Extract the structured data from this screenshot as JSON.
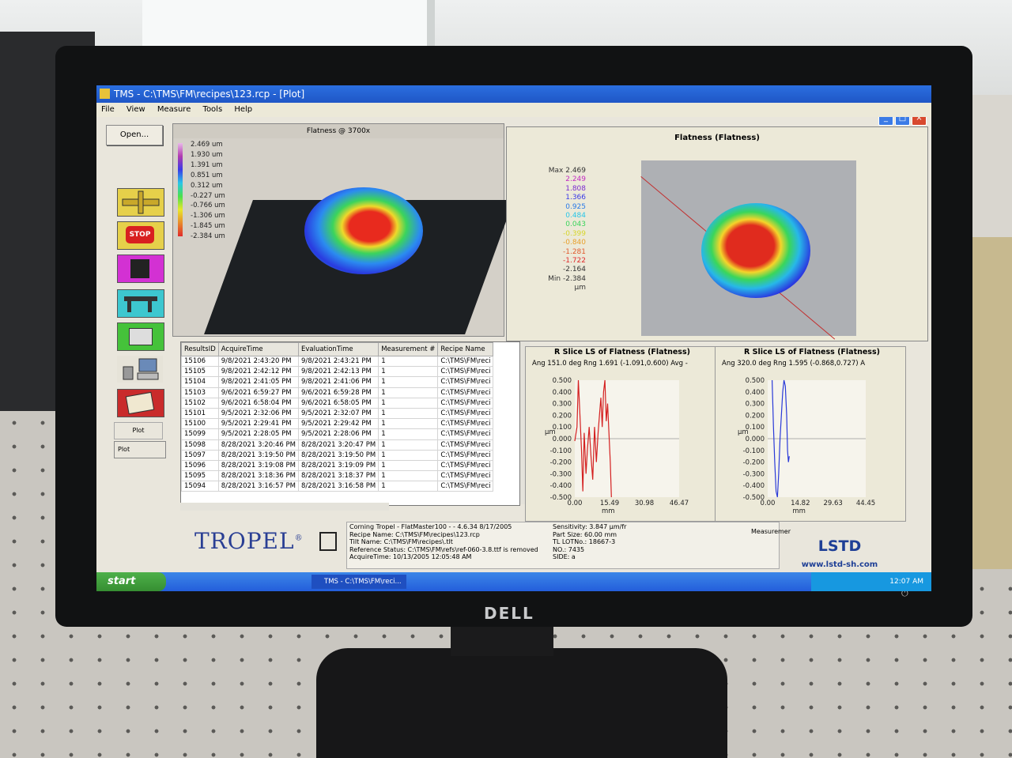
{
  "window": {
    "title": "TMS - C:\\TMS\\FM\\recipes\\123.rcp - [Plot]",
    "buttons": [
      "_",
      "□",
      "×"
    ]
  },
  "menu": [
    "File",
    "View",
    "Measure",
    "Tools",
    "Help"
  ],
  "toolbar": {
    "open_label": "Open...",
    "stop_label": "STOP",
    "plot_label": "Plot",
    "plot_hover_label": "Plot"
  },
  "plot3d": {
    "title": "Flatness @ 3700x",
    "legend": [
      "2.469 um",
      "1.930 um",
      "1.391 um",
      "0.851 um",
      "0.312 um",
      "-0.227 um",
      "-0.766 um",
      "-1.306 um",
      "-1.845 um",
      "-2.384 um"
    ]
  },
  "topview": {
    "title": "Flatness (Flatness)",
    "scale": [
      "Max 2.469",
      "2.249",
      "1.808",
      "1.366",
      "0.925",
      "0.484",
      "0.043",
      "-0.399",
      "-0.840",
      "-1.281",
      "-1.722",
      "-2.164",
      "Min -2.384",
      "µm"
    ],
    "scale_colors": [
      "#333333",
      "#c22ac2",
      "#7a2ad0",
      "#3a3ae8",
      "#2a7ae8",
      "#29c6e8",
      "#3bd45c",
      "#d6d62b",
      "#e8a02b",
      "#e05a2b",
      "#e02b2b",
      "#333333",
      "#333333",
      "#333333"
    ]
  },
  "results_table": {
    "columns": [
      "ResultsID",
      "AcquireTime",
      "EvaluationTime",
      "Measurement #",
      "Recipe Name"
    ],
    "rows": [
      [
        "15106",
        "9/8/2021 2:43:20 PM",
        "9/8/2021 2:43:21 PM",
        "1",
        "C:\\TMS\\FM\\reci"
      ],
      [
        "15105",
        "9/8/2021 2:42:12 PM",
        "9/8/2021 2:42:13 PM",
        "1",
        "C:\\TMS\\FM\\reci"
      ],
      [
        "15104",
        "9/8/2021 2:41:05 PM",
        "9/8/2021 2:41:06 PM",
        "1",
        "C:\\TMS\\FM\\reci"
      ],
      [
        "15103",
        "9/6/2021 6:59:27 PM",
        "9/6/2021 6:59:28 PM",
        "1",
        "C:\\TMS\\FM\\reci"
      ],
      [
        "15102",
        "9/6/2021 6:58:04 PM",
        "9/6/2021 6:58:05 PM",
        "1",
        "C:\\TMS\\FM\\reci"
      ],
      [
        "15101",
        "9/5/2021 2:32:06 PM",
        "9/5/2021 2:32:07 PM",
        "1",
        "C:\\TMS\\FM\\reci"
      ],
      [
        "15100",
        "9/5/2021 2:29:41 PM",
        "9/5/2021 2:29:42 PM",
        "1",
        "C:\\TMS\\FM\\reci"
      ],
      [
        "15099",
        "9/5/2021 2:28:05 PM",
        "9/5/2021 2:28:06 PM",
        "1",
        "C:\\TMS\\FM\\reci"
      ],
      [
        "15098",
        "8/28/2021 3:20:46 PM",
        "8/28/2021 3:20:47 PM",
        "1",
        "C:\\TMS\\FM\\reci"
      ],
      [
        "15097",
        "8/28/2021 3:19:50 PM",
        "8/28/2021 3:19:50 PM",
        "1",
        "C:\\TMS\\FM\\reci"
      ],
      [
        "15096",
        "8/28/2021 3:19:08 PM",
        "8/28/2021 3:19:09 PM",
        "1",
        "C:\\TMS\\FM\\reci"
      ],
      [
        "15095",
        "8/28/2021 3:18:36 PM",
        "8/28/2021 3:18:37 PM",
        "1",
        "C:\\TMS\\FM\\reci"
      ],
      [
        "15094",
        "8/28/2021 3:16:57 PM",
        "8/28/2021 3:16:58 PM",
        "1",
        "C:\\TMS\\FM\\reci"
      ]
    ]
  },
  "slice1": {
    "title": "R Slice LS of Flatness (Flatness)",
    "subtitle": "Ang 151.0 deg  Rng 1.691 (-1.091,0.600)  Avg -",
    "ylabel": "µm",
    "xlabel": "mm",
    "yticks": [
      "0.500",
      "0.400",
      "0.300",
      "0.200",
      "0.100",
      "0.000",
      "-0.100",
      "-0.200",
      "-0.300",
      "-0.400",
      "-0.500"
    ],
    "xticks": [
      "0.00",
      "15.49",
      "30.98",
      "46.47"
    ],
    "ylim": [
      -0.5,
      0.5
    ],
    "xlim": [
      0,
      46.47
    ],
    "color": "#d42020",
    "points": [
      [
        0,
        -0.02
      ],
      [
        1,
        0.1
      ],
      [
        1.6,
        0.5
      ],
      [
        2.2,
        0.25
      ],
      [
        3,
        -0.1
      ],
      [
        3.6,
        -0.45
      ],
      [
        4.2,
        0.05
      ],
      [
        5,
        -0.3
      ],
      [
        5.6,
        -0.1
      ],
      [
        6.4,
        0.1
      ],
      [
        7.2,
        -0.15
      ],
      [
        8,
        -0.35
      ],
      [
        8.8,
        0.1
      ],
      [
        9.6,
        -0.2
      ],
      [
        10.4,
        0.05
      ],
      [
        11,
        0.2
      ],
      [
        11.6,
        0.35
      ],
      [
        12.2,
        0.1
      ],
      [
        12.8,
        0.4
      ],
      [
        13.4,
        0.5
      ],
      [
        14,
        0.15
      ],
      [
        14.6,
        0.3
      ],
      [
        15.2,
        0.05
      ],
      [
        15.8,
        -0.2
      ],
      [
        16.3,
        -0.5
      ]
    ]
  },
  "slice2": {
    "title": "R Slice LS of Flatness (Flatness)",
    "subtitle": "Ang 320.0 deg  Rng 1.595 (-0.868,0.727) A",
    "ylabel": "µm",
    "xlabel": "mm",
    "yticks": [
      "0.500",
      "0.400",
      "0.300",
      "0.200",
      "0.100",
      "0.000",
      "-0.100",
      "-0.200",
      "-0.300",
      "-0.400",
      "-0.500"
    ],
    "xticks": [
      "0.00",
      "14.82",
      "29.63",
      "44.45"
    ],
    "ylim": [
      -0.5,
      0.5
    ],
    "xlim": [
      0,
      44.45
    ],
    "color": "#2a3ad8",
    "points": [
      [
        2,
        0.5
      ],
      [
        2.6,
        0.1
      ],
      [
        3.2,
        -0.2
      ],
      [
        3.8,
        -0.45
      ],
      [
        4.4,
        -0.5
      ],
      [
        5,
        -0.3
      ],
      [
        5.6,
        0.0
      ],
      [
        6.2,
        0.2
      ],
      [
        6.8,
        0.4
      ],
      [
        7.4,
        0.5
      ],
      [
        8,
        0.45
      ],
      [
        8.6,
        0.2
      ],
      [
        9,
        -0.1
      ],
      [
        9.4,
        -0.2
      ],
      [
        9.8,
        -0.15
      ]
    ]
  },
  "info": {
    "left": [
      "Corning Tropel - FlatMaster100 -  - 4.6.34 8/17/2005",
      "Recipe Name: C:\\TMS\\FM\\recipes\\123.rcp",
      "Tilt Name: C:\\TMS\\FM\\recipes\\.tlt",
      "Reference Status: C:\\TMS\\FM\\refs\\ref-060-3.8.ttf is removed",
      "AcquireTime: 10/13/2005 12:05:48 AM"
    ],
    "right": [
      "Sensitivity: 3.847 µm/fr",
      "Part Size: 60.00 mm",
      "TL LOTNo.: 18667-3",
      "NO.: 7435",
      "SIDE: a"
    ],
    "measurement_label": "Measuremer"
  },
  "branding": {
    "tropel": "TROPEL",
    "tropel_mark": "®",
    "lstd": "LSTD",
    "lstd_url": "www.lstd-sh.com"
  },
  "taskbar": {
    "start": "start",
    "task": "TMS - C:\\TMS\\FM\\reci...",
    "clock": "12:07 AM"
  },
  "monitor": {
    "brand": "DELL"
  }
}
